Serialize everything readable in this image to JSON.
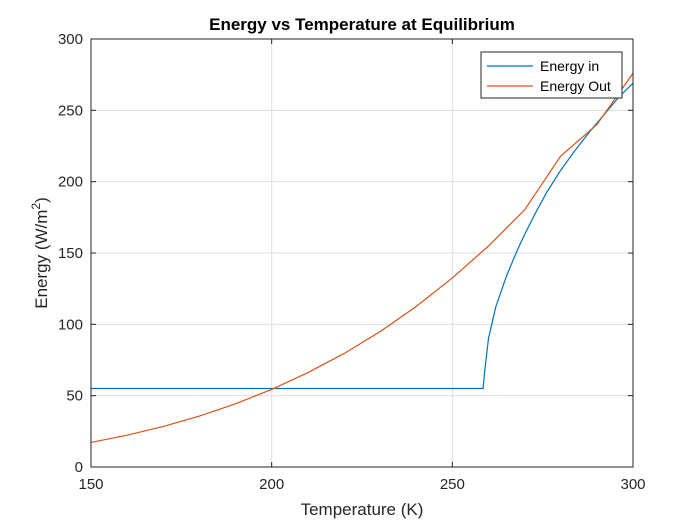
{
  "chart_data": {
    "type": "line",
    "title": "Energy vs Temperature at Equilibrium",
    "xlabel": "Temperature (K)",
    "ylabel_base": "Energy (W/m",
    "ylabel_sup": "2",
    "ylabel_close": ")",
    "xlim": [
      150,
      300
    ],
    "ylim": [
      0,
      300
    ],
    "xticks": [
      150,
      200,
      250,
      300
    ],
    "yticks": [
      0,
      50,
      100,
      150,
      200,
      250,
      300
    ],
    "xtick_labels": [
      "150",
      "200",
      "250",
      "300"
    ],
    "ytick_labels": [
      "0",
      "50",
      "100",
      "150",
      "200",
      "250",
      "300"
    ],
    "grid": true,
    "legend_position": "top-right",
    "series": [
      {
        "name": "Energy in",
        "color": "#0072bd",
        "x": [
          150,
          200,
          250,
          258.5,
          259,
          260,
          262,
          265,
          268,
          270,
          273,
          276,
          280,
          284,
          288,
          292,
          296,
          300
        ],
        "y": [
          55,
          55,
          55,
          55,
          68,
          90,
          112,
          134,
          152,
          163,
          178,
          192,
          208,
          222,
          235,
          247,
          259,
          269
        ]
      },
      {
        "name": "Energy Out",
        "color": "#d95319",
        "x": [
          150,
          160,
          170,
          180,
          190,
          200,
          210,
          220,
          230,
          240,
          250,
          260,
          270,
          280,
          290,
          300
        ],
        "y": [
          17.2,
          22.3,
          28.4,
          35.7,
          44.3,
          54.4,
          66.1,
          79.5,
          94.9,
          112.5,
          132.5,
          154.9,
          180.2,
          218.0,
          240.0,
          276.0
        ]
      }
    ]
  }
}
